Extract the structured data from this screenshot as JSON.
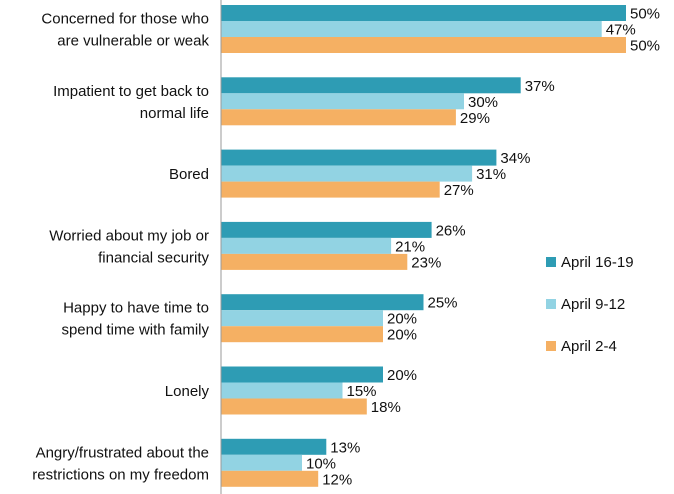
{
  "chart_data": {
    "type": "bar",
    "orientation": "horizontal",
    "categories": [
      [
        "Concerned for those who",
        "are vulnerable or weak"
      ],
      [
        "Impatient to get back to",
        "normal life"
      ],
      [
        "Bored"
      ],
      [
        "Worried about my job or",
        "financial security"
      ],
      [
        "Happy to have time to",
        "spend time with family"
      ],
      [
        "Lonely"
      ],
      [
        "Angry/frustrated about the",
        "restrictions on my freedom"
      ]
    ],
    "series": [
      {
        "name": "April 16-19",
        "color": "#2e9cb4",
        "values": [
          50,
          37,
          34,
          26,
          25,
          20,
          13
        ]
      },
      {
        "name": "April 9-12",
        "color": "#92d3e3",
        "values": [
          47,
          30,
          31,
          21,
          20,
          15,
          10
        ]
      },
      {
        "name": "April 2-4",
        "color": "#f5b063",
        "values": [
          50,
          29,
          27,
          23,
          20,
          18,
          12
        ]
      }
    ],
    "value_suffix": "%",
    "xlim": [
      0,
      50
    ],
    "grid": false,
    "legend_position": "right"
  }
}
